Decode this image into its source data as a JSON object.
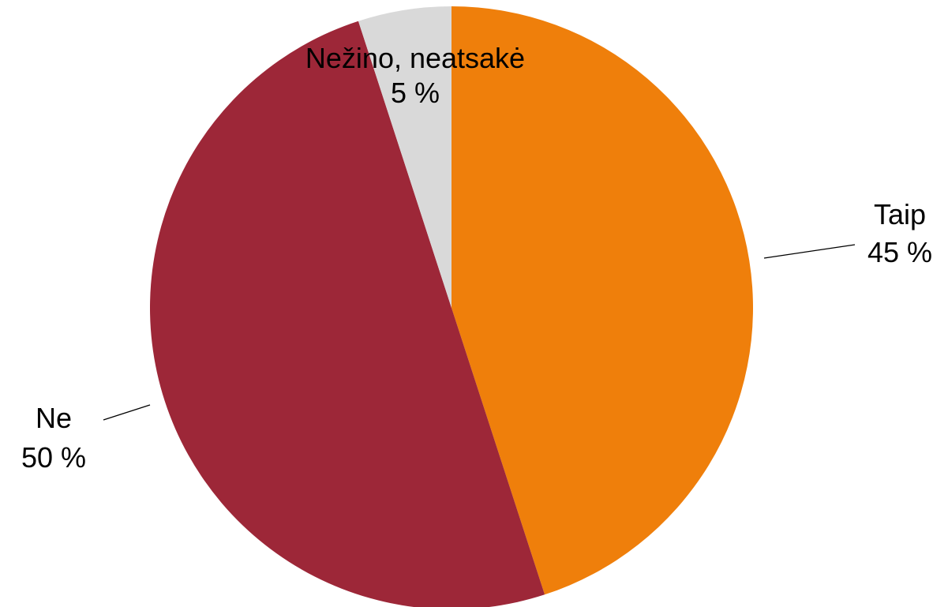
{
  "chart_data": {
    "type": "pie",
    "start_angle_deg": 0,
    "direction": "clockwise",
    "slices": [
      {
        "label": "Taip",
        "value": 45,
        "value_label": "45 %",
        "color": "#EF7F0B"
      },
      {
        "label": "Ne",
        "value": 50,
        "value_label": "50 %",
        "color": "#9D2738"
      },
      {
        "label": "Nežino, neatsakė",
        "value": 5,
        "value_label": "5 %",
        "color": "#D9D9D9"
      }
    ],
    "legend": "none"
  }
}
